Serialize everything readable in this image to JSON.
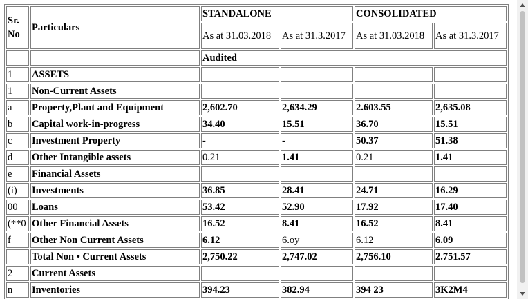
{
  "header": {
    "sr_no": "Sr. No",
    "particulars": "Particulars",
    "standalone": "STANDALONE",
    "consolidated": "CONSOLIDATED",
    "col_standalone_2018": "As at 31.03.2018",
    "col_standalone_2017": "As at 31.3.2017",
    "col_consolidated_2018": "As at 31.03.2018",
    "col_consolidated_2017": "As at 31.3.2017",
    "audited": "Audited"
  },
  "rows": [
    {
      "sr": "1",
      "label": "ASSETS",
      "v": [
        "",
        "",
        "",
        ""
      ],
      "thin": [
        false,
        false,
        false,
        false
      ]
    },
    {
      "sr": "1",
      "label": "Non-Current Assets",
      "v": [
        "",
        "",
        "",
        ""
      ],
      "thin": [
        false,
        false,
        false,
        false
      ]
    },
    {
      "sr": "a",
      "label": "Property,Plant and Equipment",
      "v": [
        "2,602.70",
        "2,634.29",
        "2.603.55",
        "2,635.08"
      ],
      "thin": [
        false,
        false,
        false,
        false
      ]
    },
    {
      "sr": "b",
      "label": "Capital work-in-progress",
      "v": [
        "34.40",
        "15.51",
        "36.70",
        "15.51"
      ],
      "thin": [
        false,
        false,
        false,
        false
      ]
    },
    {
      "sr": "c",
      "label": "Investment Property",
      "v": [
        "-",
        "-",
        "50.37",
        "51.38"
      ],
      "thin": [
        true,
        true,
        false,
        false
      ]
    },
    {
      "sr": "d",
      "label": "Other Intangible assets",
      "v": [
        "0.21",
        "1.41",
        "0.21",
        "1.41"
      ],
      "thin": [
        true,
        false,
        true,
        false
      ]
    },
    {
      "sr": "e",
      "label": "Financial Assets",
      "v": [
        "",
        "",
        "",
        ""
      ],
      "thin": [
        false,
        false,
        false,
        false
      ]
    },
    {
      "sr": "(i)",
      "label": "Investments",
      "v": [
        "36.85",
        "28.41",
        "24.71",
        "16.29"
      ],
      "thin": [
        false,
        false,
        false,
        false
      ]
    },
    {
      "sr": "00",
      "label": "Loans",
      "v": [
        "53.42",
        "52.90",
        "17.92",
        "17.40"
      ],
      "thin": [
        false,
        false,
        false,
        false
      ]
    },
    {
      "sr": "(**0",
      "label": "Other Financial Assets",
      "v": [
        "16.52",
        "8.41",
        "16.52",
        "8.41"
      ],
      "thin": [
        false,
        false,
        false,
        false
      ]
    },
    {
      "sr": "f",
      "label": "Other Non Current Assets",
      "v": [
        "6.12",
        "6.oy",
        "6.12",
        "6.09"
      ],
      "thin": [
        false,
        true,
        true,
        false
      ]
    },
    {
      "sr": "",
      "label": "Total Non • Current Assets",
      "v": [
        "2,750.22",
        "2,747.02",
        "2,756.10",
        "2.751.57"
      ],
      "thin": [
        false,
        false,
        false,
        false
      ]
    },
    {
      "sr": "2",
      "label": "Current Assets",
      "v": [
        "",
        "",
        "",
        ""
      ],
      "thin": [
        false,
        false,
        false,
        false
      ]
    },
    {
      "sr": "n",
      "label": "Inventories",
      "v": [
        "394.23",
        "382.94",
        "394 23",
        "3K2M4"
      ],
      "thin": [
        false,
        false,
        false,
        false
      ]
    }
  ]
}
